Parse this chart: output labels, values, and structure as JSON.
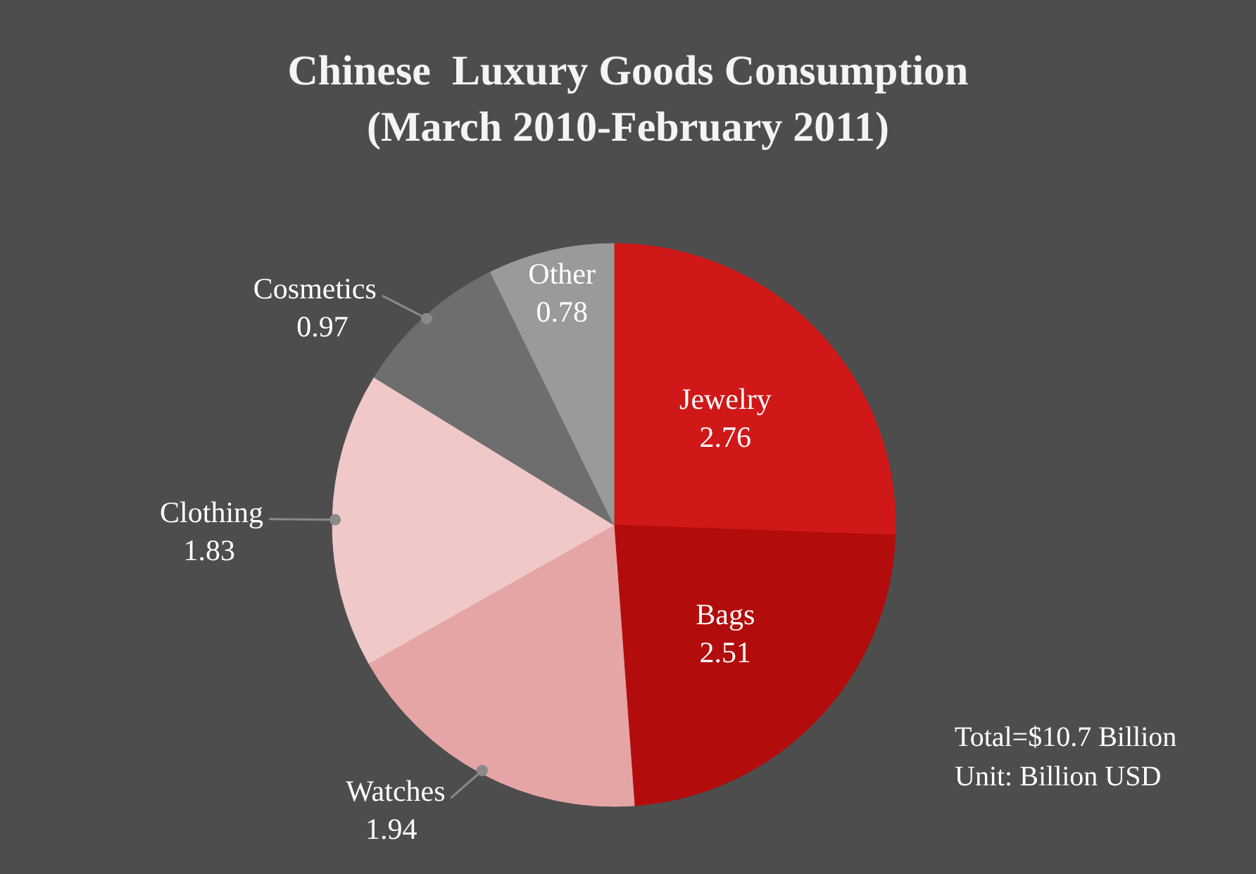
{
  "chart_data": {
    "type": "pie",
    "title": "Chinese  Luxury Goods Consumption",
    "subtitle": "(March 2010-February 2011)",
    "categories": [
      "Jewelry",
      "Bags",
      "Watches",
      "Clothing",
      "Cosmetics",
      "Other"
    ],
    "values": [
      2.76,
      2.51,
      1.94,
      1.83,
      0.97,
      0.78
    ],
    "colors": [
      "#d01818",
      "#b30c0c",
      "#e6a5a5",
      "#f0c8c8",
      "#6e6e6e",
      "#9a9a9a"
    ],
    "data_labels": true,
    "annotations": [
      "Total=$10.7 Billion",
      "Unit: Billion USD"
    ]
  }
}
